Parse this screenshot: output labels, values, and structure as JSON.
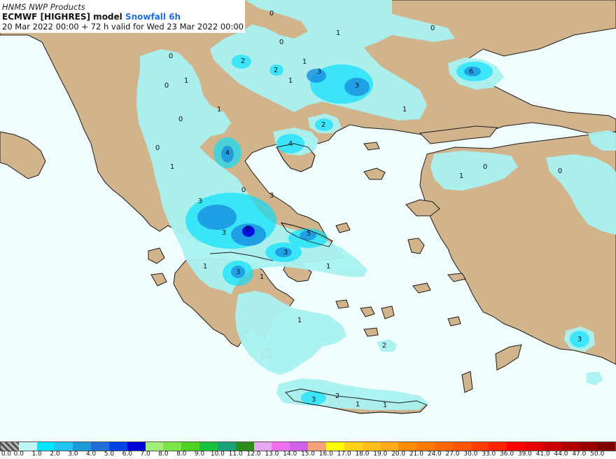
{
  "header": {
    "provider": "HNMS NWP Products",
    "model_prefix": "ECMWF [HIGHRES] model",
    "product": "Snowfall 6h",
    "validity": "20 Mar 2022 00:00 + 72 h valid for Wed 23 Mar 2022 00:00"
  },
  "colors": {
    "land": "#d2b48c",
    "sea": "#f0fdfc",
    "coast": "#1a1a1a",
    "snow_light": "#a9f2f1",
    "snow_1": "#00e0ff",
    "snow_3": "#1a8fe0",
    "snow_5": "#0000dd"
  },
  "legend": {
    "swatches": [
      {
        "label": "0.0",
        "color": "#808080"
      },
      {
        "label": "0.0",
        "color": "#bff7f7"
      },
      {
        "label": "1.0",
        "color": "#00e5ff"
      },
      {
        "label": "2.0",
        "color": "#22c4f2"
      },
      {
        "label": "3.0",
        "color": "#1a9ad9"
      },
      {
        "label": "4.0",
        "color": "#1f6ed8"
      },
      {
        "label": "5.0",
        "color": "#0044e6"
      },
      {
        "label": "6.0",
        "color": "#0000d9"
      },
      {
        "label": "7.0",
        "color": "#a0f07a"
      },
      {
        "label": "8.0",
        "color": "#7ae64a"
      },
      {
        "label": "8.0",
        "color": "#4cd125"
      },
      {
        "label": "9.0",
        "color": "#18c040"
      },
      {
        "label": "10.0",
        "color": "#1aa37a"
      },
      {
        "label": "11.0",
        "color": "#2c8c1a"
      },
      {
        "label": "12.0",
        "color": "#e8a8f0"
      },
      {
        "label": "13.0",
        "color": "#f070f0"
      },
      {
        "label": "14.0",
        "color": "#d060e8"
      },
      {
        "label": "15.0",
        "color": "#f4a27a"
      },
      {
        "label": "16.0",
        "color": "#ffff00"
      },
      {
        "label": "17.0",
        "color": "#ffd21a"
      },
      {
        "label": "18.0",
        "color": "#ffbe1a"
      },
      {
        "label": "19.0",
        "color": "#ffaa1a"
      },
      {
        "label": "20.0",
        "color": "#ff8c00"
      },
      {
        "label": "21.0",
        "color": "#ff7a00"
      },
      {
        "label": "24.0",
        "color": "#ff6600"
      },
      {
        "label": "27.0",
        "color": "#ff5500"
      },
      {
        "label": "30.0",
        "color": "#ff3d00"
      },
      {
        "label": "33.0",
        "color": "#ff2200"
      },
      {
        "label": "36.0",
        "color": "#ff0000"
      },
      {
        "label": "39.0",
        "color": "#e60000"
      },
      {
        "label": "41.0",
        "color": "#cc0000"
      },
      {
        "label": "44.0",
        "color": "#b30000"
      },
      {
        "label": "47.0",
        "color": "#990000"
      },
      {
        "label": "50.0",
        "color": "#800000"
      }
    ]
  },
  "map_labels": [
    "0",
    "1",
    "0",
    "0",
    "2",
    "2",
    "1",
    "3",
    "3",
    "1",
    "0",
    "1",
    "6",
    "0",
    "1",
    "1",
    "2",
    "0",
    "4",
    "4",
    "1",
    "0",
    "1",
    "0",
    "0",
    "3",
    "0",
    "3",
    "3",
    "5",
    "6",
    "3",
    "1",
    "3",
    "1",
    "1",
    "1",
    "3",
    "2",
    "3",
    "2",
    "1",
    "1"
  ]
}
